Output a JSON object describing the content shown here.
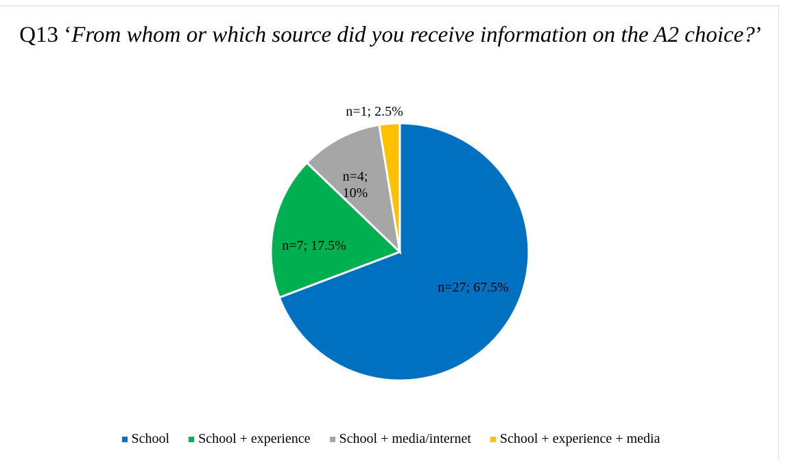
{
  "chart_data": {
    "type": "pie",
    "title_prefix": "Q13 ‘",
    "title_italic": "From whom or which source did you receive information on the A2 choice?",
    "title_suffix": "’",
    "slices": [
      {
        "name": "School",
        "value": 67.5,
        "label": "n=27; 67.5%",
        "color": "#0070c0"
      },
      {
        "name": "School + experience",
        "value": 17.5,
        "label": "n=7; 17.5%",
        "color": "#00b050"
      },
      {
        "name": "School + media/internet",
        "value": 10,
        "label_lines": [
          "n=4;",
          "10%"
        ],
        "color": "#a6a6a6"
      },
      {
        "name": "School + experience + media",
        "value": 2.5,
        "label": "n=1; 2.5%",
        "color": "#ffc000"
      }
    ],
    "legend_position": "bottom"
  }
}
